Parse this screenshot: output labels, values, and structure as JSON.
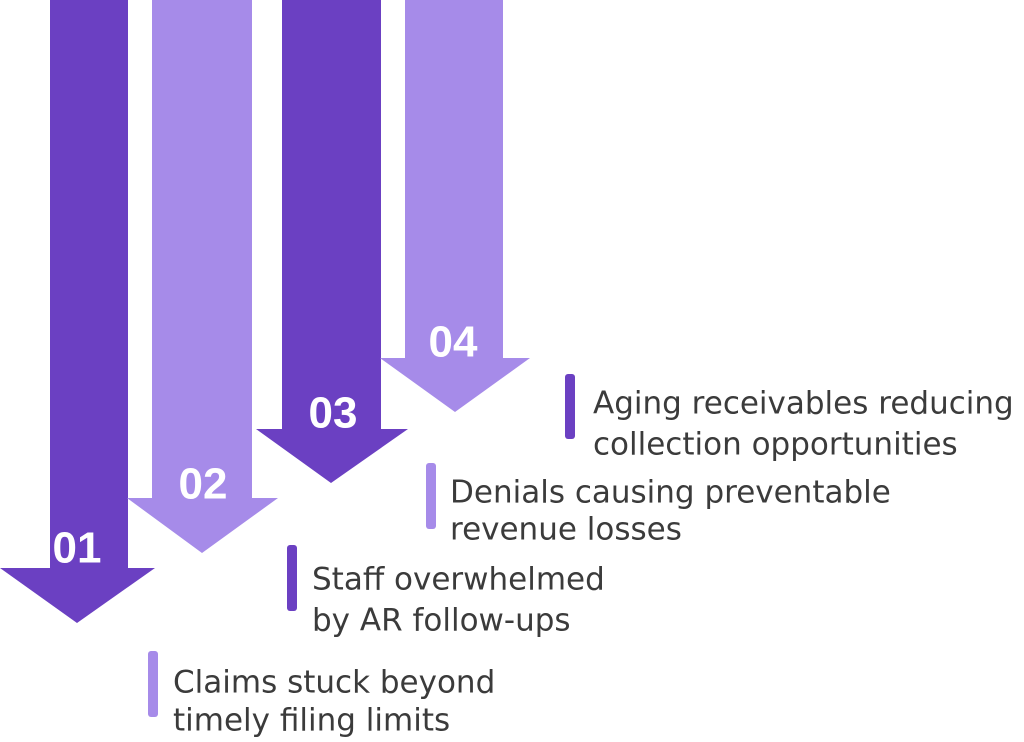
{
  "steps": [
    {
      "number": "01",
      "lines": [
        "Claims stuck beyond",
        "timely filing limits"
      ]
    },
    {
      "number": "02",
      "lines": [
        "Staff overwhelmed",
        "by AR follow-ups"
      ]
    },
    {
      "number": "03",
      "lines": [
        "Denials causing preventable",
        "revenue losses"
      ]
    },
    {
      "number": "04",
      "lines": [
        "Aging receivables reducing",
        "collection opportunities"
      ]
    }
  ]
}
